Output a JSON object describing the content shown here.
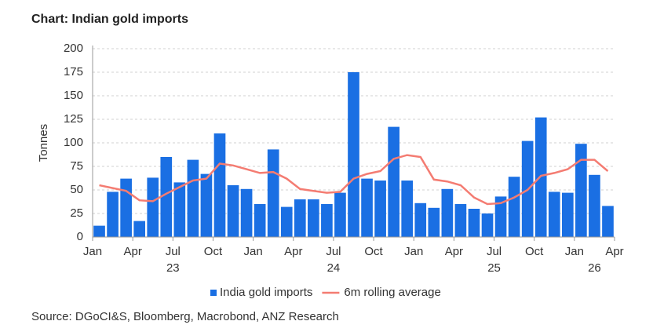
{
  "chart_data": {
    "type": "bar_line",
    "title": "Chart: Indian gold imports",
    "y_label": "Tonnes",
    "source": "Source: DGoCI&S, Bloomberg, Macrobond, ANZ Research",
    "series": [
      {
        "name": "India gold imports",
        "type": "bar",
        "color": "#1a6fe3",
        "values": [
          12,
          48,
          62,
          17,
          63,
          85,
          58,
          82,
          67,
          110,
          55,
          51,
          35,
          93,
          32,
          40,
          40,
          35,
          47,
          175,
          62,
          60,
          117,
          60,
          36,
          31,
          51,
          35,
          30,
          25,
          43,
          64,
          102,
          127,
          48,
          47,
          99,
          66,
          33
        ]
      },
      {
        "name": "6m rolling average",
        "type": "line",
        "color": "#f47c72",
        "values": [
          55,
          52,
          49,
          39,
          38,
          46,
          53,
          60,
          62,
          78,
          76,
          72,
          68,
          69,
          62,
          51,
          49,
          47,
          48,
          62,
          67,
          70,
          83,
          87,
          85,
          61,
          59,
          55,
          42,
          35,
          36,
          42,
          50,
          65,
          68,
          72,
          82,
          82,
          70
        ]
      }
    ],
    "xlim": [
      0,
      39
    ],
    "xticks": [
      {
        "value": 0,
        "label": "Jan"
      },
      {
        "value": 3,
        "label": "Apr"
      },
      {
        "value": 6,
        "label": "Jul"
      },
      {
        "value": 9,
        "label": "Oct"
      },
      {
        "value": 12,
        "label": "Jan"
      },
      {
        "value": 15,
        "label": "Apr"
      },
      {
        "value": 18,
        "label": "Jul"
      },
      {
        "value": 21,
        "label": "Oct"
      },
      {
        "value": 24,
        "label": "Jan"
      },
      {
        "value": 27,
        "label": "Apr"
      },
      {
        "value": 30,
        "label": "Jul"
      },
      {
        "value": 33,
        "label": "Oct"
      },
      {
        "value": 36,
        "label": "Jan"
      },
      {
        "value": 39,
        "label": "Apr"
      }
    ],
    "year_labels": [
      {
        "value": 6,
        "label": "23"
      },
      {
        "value": 18,
        "label": "24"
      },
      {
        "value": 30,
        "label": "25"
      },
      {
        "value": 37.5,
        "label": "26"
      }
    ],
    "ylim": [
      0,
      200
    ],
    "yticks": [
      0,
      25,
      50,
      75,
      100,
      125,
      150,
      175,
      200
    ],
    "grid": true,
    "legend": "bottom"
  }
}
